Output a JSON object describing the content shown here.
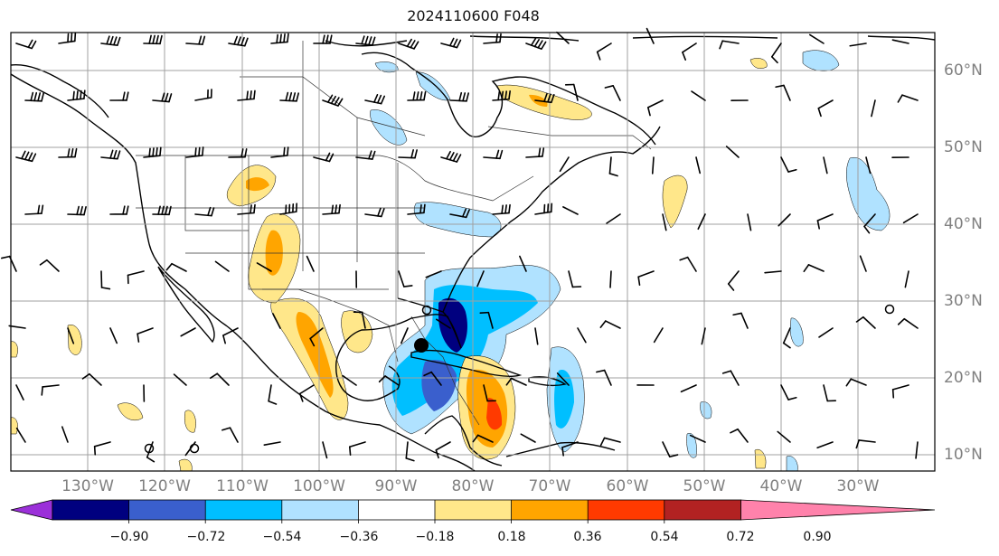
{
  "title": "2024110600 F048",
  "lon_labels": [
    "130°W",
    "120°W",
    "110°W",
    "100°W",
    "90°W",
    "80°W",
    "70°W",
    "60°W",
    "50°W",
    "40°W",
    "30°W"
  ],
  "lat_labels": [
    "60°N",
    "50°N",
    "40°N",
    "30°N",
    "20°N",
    "10°N"
  ],
  "colorbar": {
    "ticks": [
      "−0.90",
      "−0.72",
      "−0.54",
      "−0.36",
      "−0.18",
      "0.18",
      "0.36",
      "0.54",
      "0.72",
      "0.90"
    ],
    "colors": [
      "#9b30d9",
      "#00007f",
      "#3a5fcd",
      "#00bfff",
      "#b0e2ff",
      "#ffffff",
      "#ffe78a",
      "#ffa500",
      "#ff3a00",
      "#b22222",
      "#ff82ab"
    ]
  },
  "colors": {
    "grid": "#a0a0a0",
    "coast": "#000000",
    "border": "#333333"
  }
}
